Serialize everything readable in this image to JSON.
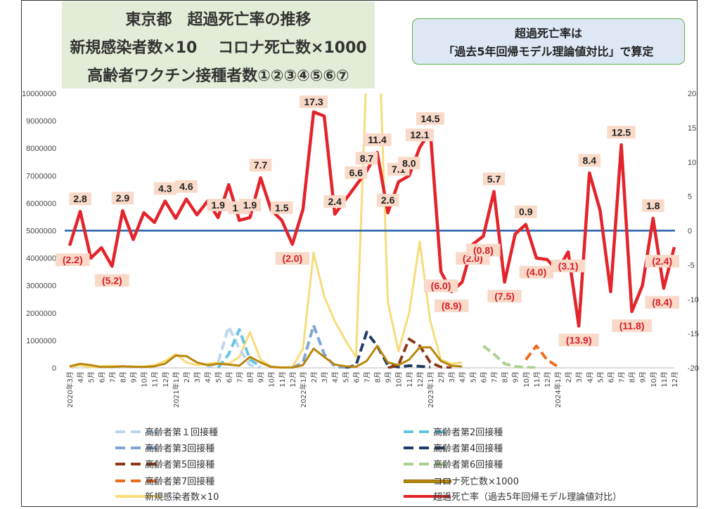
{
  "title": {
    "line1": "東京都　超過死亡率の推移",
    "line2": "新規感染者数×10　 コロナ死亡数×1000",
    "line3": "高齢者ワクチン接種者数①②③④⑤⑥⑦"
  },
  "note": {
    "line1": "超過死亡率は",
    "line2": "「過去5年回帰モデル理論値対比」で算定"
  },
  "colors": {
    "excess": "#e3242b",
    "baseline": "#1f5fa8",
    "infected": "#f6dc7a",
    "deaths": "#b8860b",
    "dose1": "#bcd6ee",
    "dose2": "#63c5e2",
    "dose3": "#7fa6d0",
    "dose4": "#1f3b63",
    "dose5": "#8b3a1a",
    "dose6": "#a9d18e",
    "dose7": "#ef6b21",
    "label_bg": "#f9d9c8"
  },
  "chart_data": {
    "type": "line",
    "x": [
      "2020年3月",
      "4月",
      "5月",
      "6月",
      "7月",
      "8月",
      "9月",
      "10月",
      "11月",
      "12月",
      "2021年1月",
      "2月",
      "3月",
      "4月",
      "5月",
      "6月",
      "7月",
      "8月",
      "9月",
      "10月",
      "11月",
      "12月",
      "2022年1月",
      "2月",
      "3月",
      "4月",
      "5月",
      "6月",
      "7月",
      "8月",
      "9月",
      "10月",
      "11月",
      "12月",
      "2023年1月",
      "2月",
      "3月",
      "4月",
      "5月",
      "6月",
      "7月",
      "8月",
      "9月",
      "10月",
      "11月",
      "12月",
      "2024年1月",
      "2月",
      "3月",
      "4月",
      "5月",
      "6月",
      "7月",
      "8月",
      "9月",
      "10月",
      "11月",
      "12月"
    ],
    "y_left": {
      "ylim": [
        0,
        10000000
      ],
      "ticks": [
        "0",
        "1000000",
        "2000000",
        "3000000",
        "4000000",
        "5000000",
        "6000000",
        "7000000",
        "8000000",
        "9000000",
        "10000000"
      ]
    },
    "y_right": {
      "ylim": [
        -20,
        20
      ],
      "ticks": [
        "20",
        "15",
        "10",
        "5",
        "0",
        "-5",
        "-10",
        "-15",
        "-20"
      ]
    },
    "series": [
      {
        "name": "超過死亡率（過去5年回帰モデル理論値対比）",
        "key": "excess",
        "axis": "right",
        "values": [
          -2.2,
          2.8,
          -4.0,
          -2.5,
          -5.2,
          2.9,
          -1.3,
          2.6,
          1.2,
          4.3,
          1.8,
          4.6,
          2.3,
          4.3,
          1.9,
          6.7,
          1.5,
          1.9,
          7.7,
          3.0,
          1.5,
          -2.0,
          3.1,
          17.3,
          16.7,
          2.4,
          4.5,
          6.6,
          8.7,
          11.4,
          2.6,
          7.1,
          8.0,
          12.1,
          14.5,
          -6.0,
          -8.9,
          -7.5,
          -2.0,
          -0.8,
          5.7,
          -7.5,
          -0.5,
          0.9,
          -4.0,
          -4.2,
          -5.8,
          -3.1,
          -13.9,
          8.4,
          3.0,
          -8.9,
          12.5,
          -11.8,
          -8.0,
          1.8,
          -8.4,
          -2.4
        ]
      },
      {
        "name": "新規感染者数×10",
        "key": "infected",
        "axis": "left",
        "values": [
          20000,
          100000,
          20000,
          60000,
          80000,
          60000,
          40000,
          50000,
          100000,
          250000,
          500000,
          200000,
          100000,
          150000,
          200000,
          150000,
          400000,
          1300000,
          300000,
          50000,
          20000,
          30000,
          700000,
          4200000,
          2600000,
          1700000,
          1000000,
          400000,
          11000000,
          14000000,
          2400000,
          600000,
          2000000,
          4600000,
          1700000,
          300000,
          150000,
          200000,
          null,
          null,
          null,
          null,
          null,
          null,
          null,
          null,
          null,
          null,
          null,
          null,
          null,
          null,
          null,
          null,
          null,
          null,
          null,
          null
        ]
      },
      {
        "name": "コロナ死亡数×1000",
        "key": "deaths",
        "axis": "left",
        "values": [
          50000,
          150000,
          100000,
          30000,
          30000,
          60000,
          40000,
          30000,
          60000,
          150000,
          450000,
          430000,
          200000,
          100000,
          150000,
          120000,
          80000,
          400000,
          200000,
          30000,
          10000,
          10000,
          100000,
          700000,
          400000,
          120000,
          60000,
          40000,
          250000,
          800000,
          200000,
          100000,
          300000,
          750000,
          750000,
          250000,
          80000,
          50000,
          null,
          null,
          null,
          null,
          null,
          null,
          null,
          null,
          null,
          null,
          null,
          null,
          null,
          null,
          null,
          null,
          null,
          null,
          null,
          null
        ]
      },
      {
        "name": "高齢者第１回接種",
        "key": "dose1",
        "axis": "left",
        "dashed": true,
        "values": [
          null,
          null,
          null,
          null,
          null,
          null,
          null,
          null,
          null,
          null,
          null,
          null,
          null,
          0,
          200000,
          1500000,
          700000,
          100000,
          0,
          null,
          null,
          null,
          null,
          null,
          null,
          null,
          null,
          null,
          null,
          null,
          null,
          null,
          null,
          null,
          null,
          null,
          null,
          null,
          null,
          null,
          null,
          null,
          null,
          null,
          null,
          null,
          null,
          null,
          null,
          null,
          null,
          null,
          null,
          null,
          null,
          null,
          null,
          null
        ]
      },
      {
        "name": "高齢者第2回接種",
        "key": "dose2",
        "axis": "left",
        "dashed": true,
        "values": [
          null,
          null,
          null,
          null,
          null,
          null,
          null,
          null,
          null,
          null,
          null,
          null,
          null,
          null,
          0,
          500000,
          1400000,
          300000,
          50000,
          null,
          null,
          null,
          null,
          null,
          null,
          null,
          null,
          null,
          null,
          null,
          null,
          null,
          null,
          null,
          null,
          null,
          null,
          null,
          null,
          null,
          null,
          null,
          null,
          null,
          null,
          null,
          null,
          null,
          null,
          null,
          null,
          null,
          null,
          null,
          null,
          null,
          null,
          null
        ]
      },
      {
        "name": "高齢者第3回接種",
        "key": "dose3",
        "axis": "left",
        "dashed": true,
        "values": [
          null,
          null,
          null,
          null,
          null,
          null,
          null,
          null,
          null,
          null,
          null,
          null,
          null,
          null,
          null,
          null,
          null,
          null,
          null,
          null,
          null,
          0,
          200000,
          1550000,
          500000,
          50000,
          0,
          null,
          null,
          null,
          null,
          null,
          null,
          null,
          null,
          null,
          null,
          null,
          null,
          null,
          null,
          null,
          null,
          null,
          null,
          null,
          null,
          null,
          null,
          null,
          null,
          null,
          null,
          null,
          null,
          null,
          null,
          null
        ]
      },
      {
        "name": "高齢者第4回接種",
        "key": "dose4",
        "axis": "left",
        "dashed": true,
        "values": [
          null,
          null,
          null,
          null,
          null,
          null,
          null,
          null,
          null,
          null,
          null,
          null,
          null,
          null,
          null,
          null,
          null,
          null,
          null,
          null,
          null,
          null,
          null,
          null,
          null,
          null,
          0,
          100000,
          1300000,
          800000,
          100000,
          30000,
          80000,
          60000,
          30000,
          null,
          null,
          null,
          null,
          null,
          null,
          null,
          null,
          null,
          null,
          null,
          null,
          null,
          null,
          null,
          null,
          null,
          null,
          null,
          null,
          null,
          null,
          null
        ]
      },
      {
        "name": "高齢者第5回接種",
        "key": "dose5",
        "axis": "left",
        "dashed": true,
        "values": [
          null,
          null,
          null,
          null,
          null,
          null,
          null,
          null,
          null,
          null,
          null,
          null,
          null,
          null,
          null,
          null,
          null,
          null,
          null,
          null,
          null,
          null,
          null,
          null,
          null,
          null,
          null,
          null,
          null,
          null,
          0,
          100000,
          1050000,
          800000,
          200000,
          30000,
          0,
          null,
          null,
          null,
          null,
          null,
          null,
          null,
          null,
          null,
          null,
          null,
          null,
          null,
          null,
          null,
          null,
          null,
          null,
          null,
          null,
          null
        ]
      },
      {
        "name": "高齢者第6回接種",
        "key": "dose6",
        "axis": "left",
        "dashed": true,
        "values": [
          null,
          null,
          null,
          null,
          null,
          null,
          null,
          null,
          null,
          null,
          null,
          null,
          null,
          null,
          null,
          null,
          null,
          null,
          null,
          null,
          null,
          null,
          null,
          null,
          null,
          null,
          null,
          null,
          null,
          null,
          null,
          null,
          null,
          null,
          null,
          null,
          null,
          null,
          null,
          800000,
          500000,
          150000,
          50000,
          20000,
          0,
          null,
          null,
          null,
          null,
          null,
          null,
          null,
          null,
          null,
          null,
          null,
          null,
          null
        ]
      },
      {
        "name": "高齢者第7回接種",
        "key": "dose7",
        "axis": "left",
        "dashed": true,
        "values": [
          null,
          null,
          null,
          null,
          null,
          null,
          null,
          null,
          null,
          null,
          null,
          null,
          null,
          null,
          null,
          null,
          null,
          null,
          null,
          null,
          null,
          null,
          null,
          null,
          null,
          null,
          null,
          null,
          null,
          null,
          null,
          null,
          null,
          null,
          null,
          null,
          null,
          null,
          null,
          null,
          null,
          null,
          null,
          300000,
          800000,
          300000,
          50000,
          null,
          null,
          null,
          null,
          null,
          null,
          null,
          null,
          null,
          null,
          null
        ]
      }
    ],
    "baseline": {
      "axis": "right",
      "value": 0
    },
    "data_labels": [
      {
        "i": 0,
        "text": "(2.2)"
      },
      {
        "i": 1,
        "text": "2.8"
      },
      {
        "i": 4,
        "text": "(5.2)"
      },
      {
        "i": 5,
        "text": "2.9"
      },
      {
        "i": 9,
        "text": "4.3"
      },
      {
        "i": 11,
        "text": "4.6"
      },
      {
        "i": 14,
        "text": "1.9"
      },
      {
        "i": 16,
        "text": "1.5"
      },
      {
        "i": 17,
        "text": "1.9"
      },
      {
        "i": 18,
        "text": "7.7"
      },
      {
        "i": 20,
        "text": "1.5"
      },
      {
        "i": 21,
        "text": "(2.0)"
      },
      {
        "i": 23,
        "text": "17.3"
      },
      {
        "i": 25,
        "text": "2.4"
      },
      {
        "i": 27,
        "text": "6.6"
      },
      {
        "i": 28,
        "text": "8.7"
      },
      {
        "i": 29,
        "text": "11.4"
      },
      {
        "i": 30,
        "text": "2.6"
      },
      {
        "i": 31,
        "text": "7.1"
      },
      {
        "i": 32,
        "text": "8.0"
      },
      {
        "i": 33,
        "text": "12.1"
      },
      {
        "i": 34,
        "text": "14.5"
      },
      {
        "i": 35,
        "text": "(6.0)"
      },
      {
        "i": 36,
        "text": "(8.9)"
      },
      {
        "i": 38,
        "text": "(2.0)"
      },
      {
        "i": 39,
        "text": "(0.8)"
      },
      {
        "i": 40,
        "text": "5.7"
      },
      {
        "i": 41,
        "text": "(7.5)"
      },
      {
        "i": 43,
        "text": "0.9"
      },
      {
        "i": 44,
        "text": "(4.0)"
      },
      {
        "i": 47,
        "text": "(3.1)"
      },
      {
        "i": 48,
        "text": "(13.9)"
      },
      {
        "i": 49,
        "text": "8.4"
      },
      {
        "i": 52,
        "text": "12.5"
      },
      {
        "i": 53,
        "text": "(11.8)"
      },
      {
        "i": 55,
        "text": "1.8"
      },
      {
        "i": 56,
        "text": "(8.4)"
      },
      {
        "i": 57,
        "text": "(2.4)"
      }
    ]
  }
}
